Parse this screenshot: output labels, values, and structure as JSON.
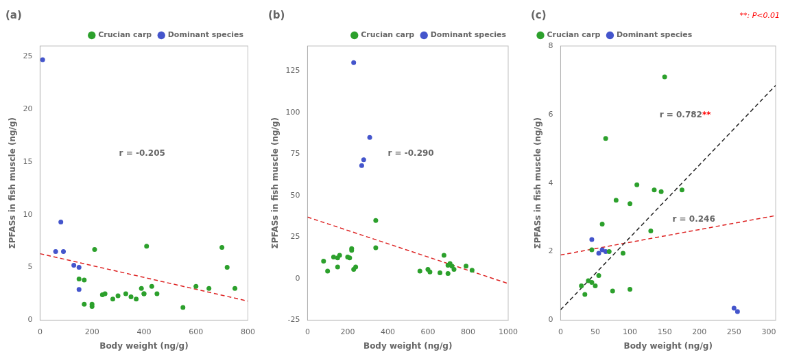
{
  "chart_data": [
    {
      "type": "scatter",
      "title": "(a)",
      "xlabel": "Body weight (ng/g)",
      "ylabel": "ΣPFASs in fish muscle (ng/g)",
      "series": [
        {
          "name": "Crucian carp",
          "color": "#2ca02c",
          "marker": "circle",
          "x": [
            150,
            170,
            170,
            200,
            200,
            210,
            240,
            250,
            280,
            300,
            330,
            350,
            370,
            390,
            400,
            400,
            410,
            430,
            450,
            550,
            600,
            650,
            700,
            720,
            750
          ],
          "values": [
            3.9,
            1.5,
            3.8,
            1.3,
            1.5,
            6.7,
            2.4,
            2.5,
            2.0,
            2.3,
            2.5,
            2.2,
            2.0,
            3.0,
            2.5,
            2.5,
            7.0,
            3.2,
            2.5,
            1.2,
            3.2,
            3.0,
            6.9,
            5.0,
            3.0
          ]
        },
        {
          "name": "Dominant species",
          "color": "#4455cc",
          "marker": "circle",
          "x": [
            10,
            60,
            80,
            90,
            130,
            150,
            150
          ],
          "values": [
            24.7,
            6.5,
            9.3,
            6.5,
            5.2,
            5.0,
            2.9
          ]
        },
        {
          "type": "line",
          "line_style": "dashed",
          "color": "#dd2222",
          "x": [
            0,
            800
          ],
          "values": [
            6.3,
            1.8
          ]
        }
      ],
      "annotations": [
        {
          "text": "r = -0.205"
        }
      ],
      "xlim": [
        0,
        800
      ],
      "ylim": [
        0,
        26
      ],
      "xticks": [
        0,
        200,
        400,
        600,
        800
      ],
      "yticks": [
        0,
        5,
        10,
        15,
        20,
        25
      ],
      "legend": "upper right",
      "grid": false
    },
    {
      "type": "scatter",
      "title": "(b)",
      "xlabel": "Body weight (ng/g)",
      "ylabel": "ΣPFASs in fish muscle (ng/g)",
      "series": [
        {
          "name": "Crucian carp",
          "color": "#2ca02c",
          "marker": "circle",
          "x": [
            80,
            100,
            130,
            150,
            150,
            160,
            200,
            210,
            220,
            220,
            230,
            240,
            340,
            340,
            560,
            600,
            610,
            660,
            680,
            700,
            700,
            710,
            720,
            730,
            790,
            820
          ],
          "values": [
            10.5,
            4.5,
            13.0,
            7.0,
            12.5,
            14.0,
            13.0,
            12.5,
            17.0,
            18.0,
            5.5,
            7.0,
            18.5,
            35.0,
            4.5,
            5.5,
            4.0,
            3.5,
            14.0,
            3.0,
            8.0,
            9.0,
            7.5,
            5.5,
            7.5,
            5.0
          ]
        },
        {
          "name": "Dominant species",
          "color": "#4455cc",
          "marker": "circle",
          "x": [
            230,
            270,
            280,
            310
          ],
          "values": [
            130.0,
            68.0,
            71.5,
            85.0
          ]
        },
        {
          "type": "line",
          "line_style": "dashed",
          "color": "#dd2222",
          "x": [
            0,
            1000
          ],
          "values": [
            37.0,
            -3.0
          ]
        }
      ],
      "annotations": [
        {
          "text": "r = -0.290"
        }
      ],
      "xlim": [
        0,
        1000
      ],
      "ylim": [
        -25,
        140
      ],
      "xticks": [
        0,
        200,
        400,
        600,
        800,
        1000
      ],
      "yticks": [
        -25,
        0,
        25,
        50,
        75,
        100,
        125
      ],
      "legend": "upper right",
      "grid": false
    },
    {
      "type": "scatter",
      "title": "(c)",
      "xlabel": "Body weight (ng/g)",
      "ylabel": "ΣPFASs in fish muscle (ng/g)",
      "series": [
        {
          "name": "Crucian carp",
          "color": "#2ca02c",
          "marker": "circle",
          "x": [
            30,
            35,
            40,
            45,
            45,
            50,
            55,
            60,
            65,
            70,
            75,
            80,
            90,
            100,
            100,
            110,
            130,
            135,
            145,
            150,
            175
          ],
          "values": [
            1.0,
            0.75,
            1.15,
            2.05,
            1.1,
            1.0,
            1.3,
            2.8,
            5.3,
            2.0,
            0.85,
            3.5,
            1.95,
            3.4,
            0.9,
            3.95,
            2.6,
            3.8,
            3.75,
            7.1,
            3.8
          ]
        },
        {
          "name": "Dominant species",
          "color": "#4455cc",
          "marker": "circle",
          "x": [
            45,
            55,
            60,
            65,
            250,
            255
          ],
          "values": [
            2.35,
            1.95,
            2.05,
            2.0,
            0.35,
            0.25
          ]
        },
        {
          "type": "line",
          "line_style": "dashed",
          "color": "#222222",
          "x": [
            0,
            310
          ],
          "values": [
            0.3,
            6.85
          ]
        },
        {
          "type": "line",
          "line_style": "dashed",
          "color": "#dd2222",
          "x": [
            0,
            310
          ],
          "values": [
            1.9,
            3.05
          ]
        }
      ],
      "annotations": [
        {
          "text": "r = 0.782"
        },
        {
          "text": "**",
          "color": "red"
        },
        {
          "text": "r = 0.246"
        },
        {
          "text": "**: P<0.01",
          "color": "red"
        }
      ],
      "xlim": [
        0,
        310
      ],
      "ylim": [
        0,
        8
      ],
      "xticks": [
        0,
        50,
        100,
        150,
        200,
        250,
        300
      ],
      "yticks": [
        0,
        2,
        4,
        6,
        8
      ],
      "legend": "upper left",
      "grid": false
    }
  ]
}
